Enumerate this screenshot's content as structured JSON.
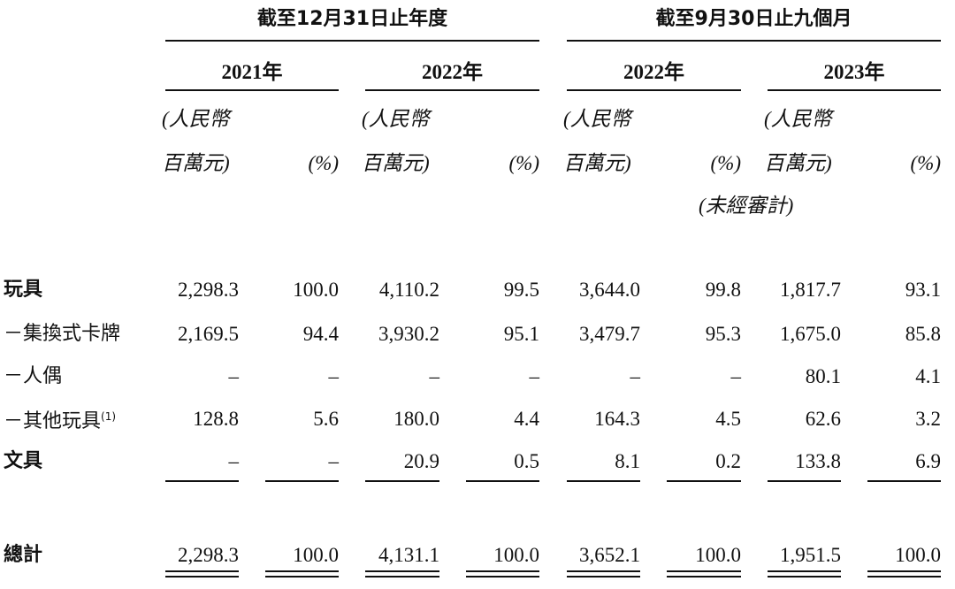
{
  "header": {
    "groups": [
      "截至12月31日止年度",
      "截至9月30日止九個月"
    ],
    "years": [
      "2021年",
      "2022年",
      "2022年",
      "2023年"
    ],
    "units": [
      [
        "(人民幣",
        "百萬元)"
      ],
      [
        "(%)"
      ],
      [
        "(人民幣",
        "百萬元)"
      ],
      [
        "(%)"
      ],
      [
        "(人民幣",
        "百萬元)"
      ],
      [
        "(%)"
      ],
      [
        "(人民幣",
        "百萬元)"
      ],
      [
        "(%)"
      ]
    ],
    "audit_note": "(未經審計)"
  },
  "table": {
    "rows": [
      {
        "label": "玩具",
        "cells": [
          "2,298.3",
          "100.0",
          "4,110.2",
          "99.5",
          "3,644.0",
          "99.8",
          "1,817.7",
          "93.1"
        ]
      },
      {
        "label": "－集換式卡牌",
        "cells": [
          "2,169.5",
          "94.4",
          "3,930.2",
          "95.1",
          "3,479.7",
          "95.3",
          "1,675.0",
          "85.8"
        ]
      },
      {
        "label": "－人偶",
        "cells": [
          "–",
          "–",
          "–",
          "–",
          "–",
          "–",
          "80.1",
          "4.1"
        ]
      },
      {
        "label": "－其他玩具",
        "note": "(1)",
        "cells": [
          "128.8",
          "5.6",
          "180.0",
          "4.4",
          "164.3",
          "4.5",
          "62.6",
          "3.2"
        ]
      },
      {
        "label": "文具",
        "cells": [
          "–",
          "–",
          "20.9",
          "0.5",
          "8.1",
          "0.2",
          "133.8",
          "6.9"
        ]
      }
    ],
    "total": {
      "label": "總計",
      "cells": [
        "2,298.3",
        "100.0",
        "4,131.1",
        "100.0",
        "3,652.1",
        "100.0",
        "1,951.5",
        "100.0"
      ]
    }
  }
}
